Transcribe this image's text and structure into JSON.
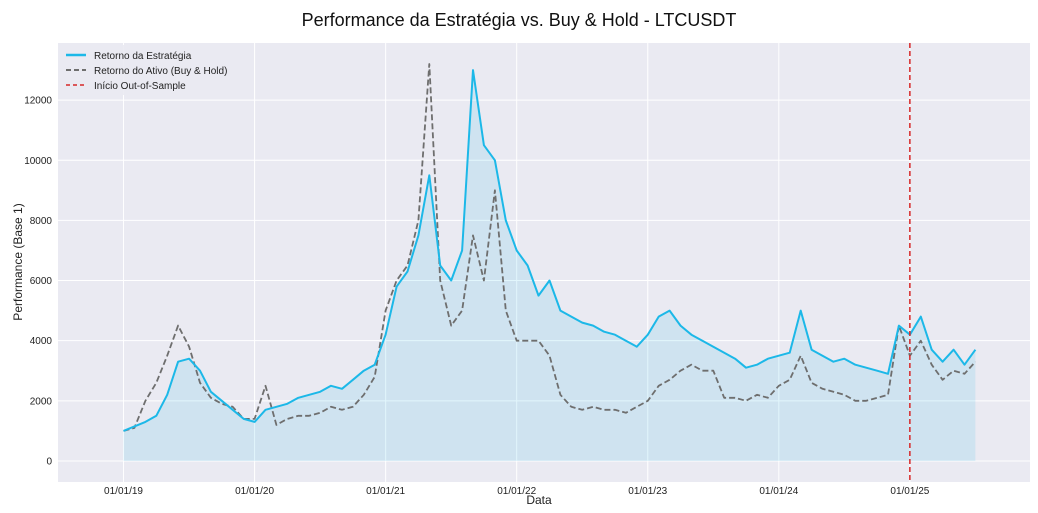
{
  "chart_data": {
    "type": "line",
    "title": "Performance da Estratégia vs. Buy & Hold - LTCUSDT",
    "xlabel": "Data",
    "ylabel": "Performance (Base 1)",
    "ylim": [
      -700,
      13900
    ],
    "xlim": [
      "2018-07",
      "2025-12"
    ],
    "yticks": [
      0,
      2000,
      4000,
      6000,
      8000,
      10000,
      12000
    ],
    "xticks": [
      "01/01/19",
      "01/01/20",
      "01/01/21",
      "01/01/22",
      "01/01/23",
      "01/01/24",
      "01/01/25"
    ],
    "grid": true,
    "legend_position": "top-left",
    "x": [
      "2019-01",
      "2019-02",
      "2019-03",
      "2019-04",
      "2019-05",
      "2019-06",
      "2019-07",
      "2019-08",
      "2019-09",
      "2019-10",
      "2019-11",
      "2019-12",
      "2020-01",
      "2020-02",
      "2020-03",
      "2020-04",
      "2020-05",
      "2020-06",
      "2020-07",
      "2020-08",
      "2020-09",
      "2020-10",
      "2020-11",
      "2020-12",
      "2021-01",
      "2021-02",
      "2021-03",
      "2021-04",
      "2021-05",
      "2021-06",
      "2021-07",
      "2021-08",
      "2021-09",
      "2021-10",
      "2021-11",
      "2021-12",
      "2022-01",
      "2022-02",
      "2022-03",
      "2022-04",
      "2022-05",
      "2022-06",
      "2022-07",
      "2022-08",
      "2022-09",
      "2022-10",
      "2022-11",
      "2022-12",
      "2023-01",
      "2023-02",
      "2023-03",
      "2023-04",
      "2023-05",
      "2023-06",
      "2023-07",
      "2023-08",
      "2023-09",
      "2023-10",
      "2023-11",
      "2023-12",
      "2024-01",
      "2024-02",
      "2024-03",
      "2024-04",
      "2024-05",
      "2024-06",
      "2024-07",
      "2024-08",
      "2024-09",
      "2024-10",
      "2024-11",
      "2024-12",
      "2025-01",
      "2025-02",
      "2025-03",
      "2025-04",
      "2025-05",
      "2025-06",
      "2025-07"
    ],
    "series": [
      {
        "name": "Retorno da Estratégia",
        "color": "#1cb8e8",
        "style": "solid",
        "fill": true,
        "values": [
          1000,
          1150,
          1300,
          1500,
          2200,
          3300,
          3400,
          3000,
          2300,
          2000,
          1700,
          1400,
          1300,
          1700,
          1800,
          1900,
          2100,
          2200,
          2300,
          2500,
          2400,
          2700,
          3000,
          3200,
          4200,
          5800,
          6300,
          7500,
          9500,
          6500,
          6000,
          7000,
          13000,
          10500,
          10000,
          8000,
          7000,
          6500,
          5500,
          6000,
          5000,
          4800,
          4600,
          4500,
          4300,
          4200,
          4000,
          3800,
          4200,
          4800,
          5000,
          4500,
          4200,
          4000,
          3800,
          3600,
          3400,
          3100,
          3200,
          3400,
          3500,
          3600,
          5000,
          3700,
          3500,
          3300,
          3400,
          3200,
          3100,
          3000,
          2900,
          4500,
          4200,
          4800,
          3700,
          3300,
          3700,
          3200,
          3700
        ]
      },
      {
        "name": "Retorno do Ativo (Buy & Hold)",
        "color": "#6e6e6e",
        "style": "dashed",
        "fill": false,
        "values": [
          1000,
          1100,
          2000,
          2600,
          3500,
          4500,
          3800,
          2600,
          2100,
          1900,
          1800,
          1400,
          1400,
          2500,
          1200,
          1400,
          1500,
          1500,
          1600,
          1800,
          1700,
          1800,
          2200,
          2800,
          5000,
          6000,
          6500,
          8000,
          13200,
          6000,
          4500,
          5000,
          7500,
          6000,
          9000,
          5000,
          4000,
          4000,
          4000,
          3500,
          2200,
          1800,
          1700,
          1800,
          1700,
          1700,
          1600,
          1800,
          2000,
          2500,
          2700,
          3000,
          3200,
          3000,
          3000,
          2100,
          2100,
          2000,
          2200,
          2100,
          2500,
          2700,
          3500,
          2600,
          2400,
          2300,
          2200,
          2000,
          2000,
          2100,
          2200,
          4500,
          3500,
          4000,
          3200,
          2700,
          3000,
          2900,
          3300
        ]
      }
    ],
    "annotations": [
      {
        "type": "vline",
        "x": "2025-01",
        "label": "Início Out-of-Sample",
        "color": "#d62728",
        "style": "dashed"
      }
    ]
  }
}
